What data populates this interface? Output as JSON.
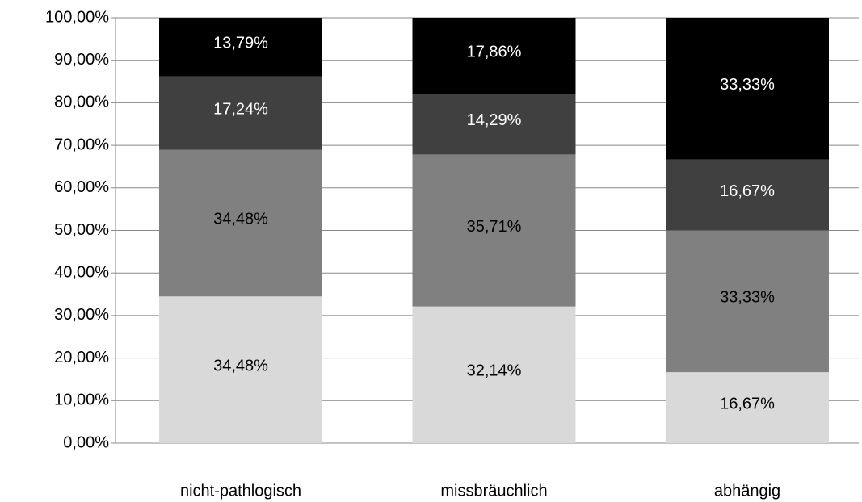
{
  "chart_data": {
    "type": "stacked_bar",
    "categories": [
      "nicht-pathlogisch",
      "missbräuchlich",
      "abhängig"
    ],
    "series": [
      {
        "color": "#d9d9d9",
        "label_color": "#000000",
        "values": [
          34.48,
          32.14,
          16.67
        ],
        "value_labels": [
          "34,48%",
          "32,14%",
          "16,67%"
        ]
      },
      {
        "color": "#808080",
        "label_color": "#000000",
        "values": [
          34.48,
          35.71,
          33.33
        ],
        "value_labels": [
          "34,48%",
          "35,71%",
          "33,33%"
        ]
      },
      {
        "color": "#404040",
        "label_color": "#ffffff",
        "values": [
          17.24,
          14.29,
          16.67
        ],
        "value_labels": [
          "17,24%",
          "14,29%",
          "16,67%"
        ]
      },
      {
        "color": "#000000",
        "label_color": "#ffffff",
        "values": [
          13.79,
          17.86,
          33.33
        ],
        "value_labels": [
          "13,79%",
          "17,86%",
          "33,33%"
        ]
      }
    ],
    "ylim": [
      0,
      100
    ],
    "yticks": [
      {
        "value": 0,
        "label": "0,00%"
      },
      {
        "value": 10,
        "label": "10,00%"
      },
      {
        "value": 20,
        "label": "20,00%"
      },
      {
        "value": 30,
        "label": "30,00%"
      },
      {
        "value": 40,
        "label": "40,00%"
      },
      {
        "value": 50,
        "label": "50,00%"
      },
      {
        "value": 60,
        "label": "60,00%"
      },
      {
        "value": 70,
        "label": "70,00%"
      },
      {
        "value": 80,
        "label": "80,00%"
      },
      {
        "value": 90,
        "label": "90,00%"
      },
      {
        "value": 100,
        "label": "100,00%"
      }
    ],
    "grid": true
  }
}
